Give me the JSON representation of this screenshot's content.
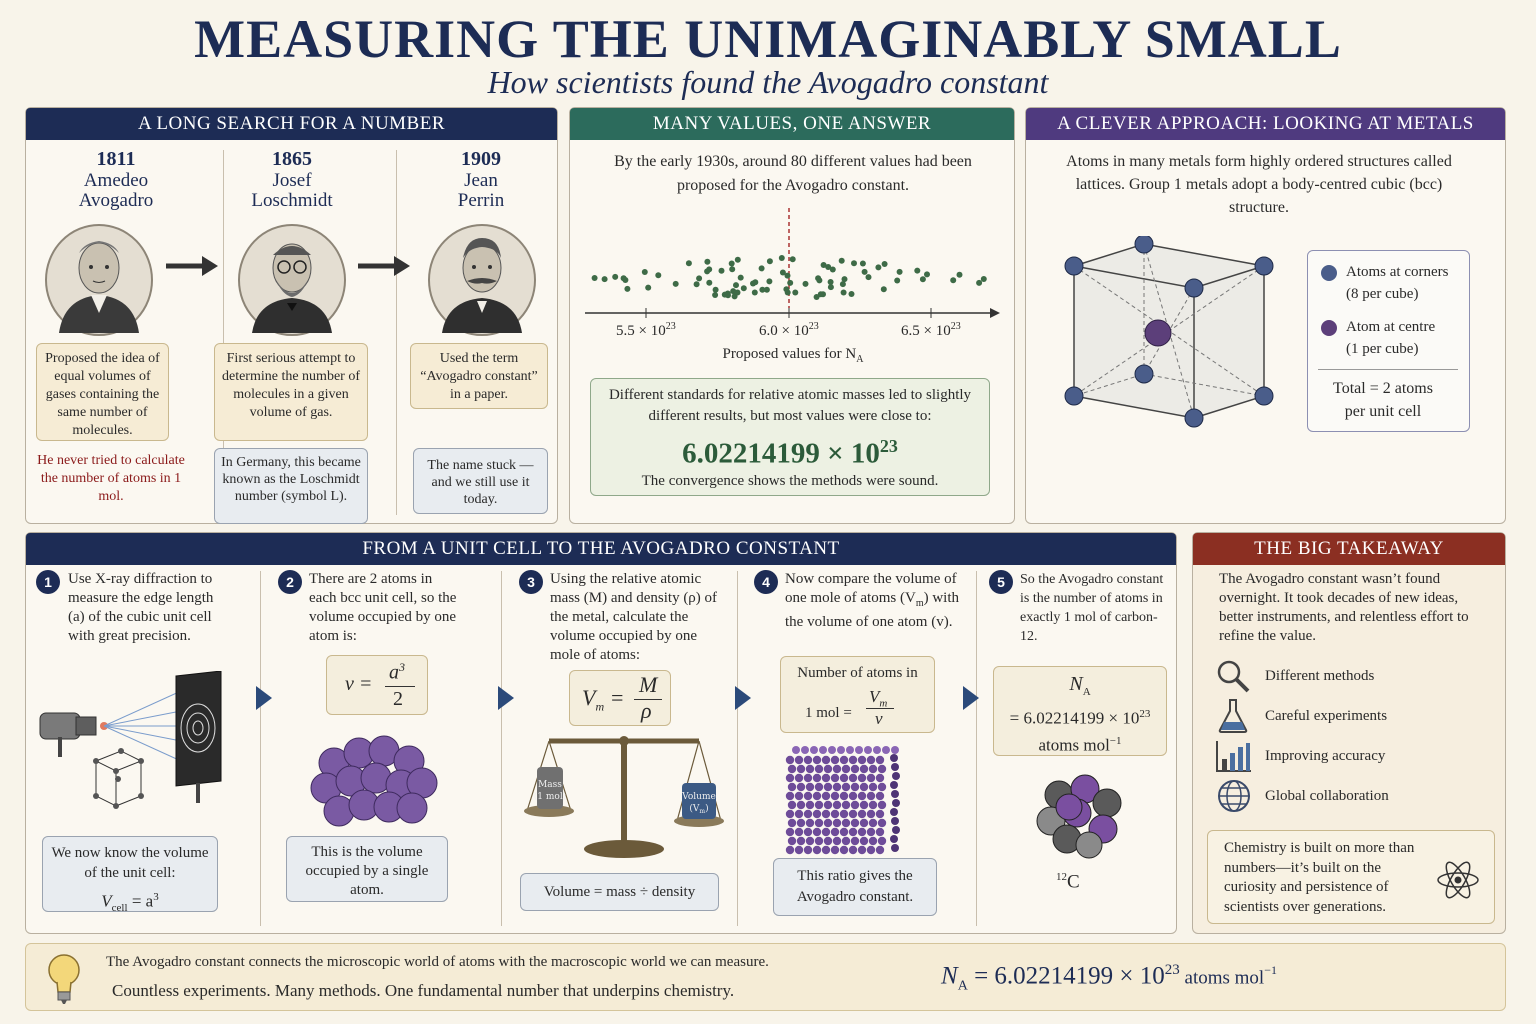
{
  "title": "MEASURING THE UNIMAGINABLY SMALL",
  "subtitle": "How scientists found the Avogadro constant",
  "colors": {
    "navy": "#1d2c55",
    "teal": "#2c6b5c",
    "purple": "#4f3a7f",
    "red": "#8b2f22",
    "accent_red": "#8b1a1a",
    "dot_green": "#3e6b47"
  },
  "search": {
    "heading": "A LONG SEARCH FOR A NUMBER",
    "people": [
      {
        "year": "1811",
        "first": "Amedeo",
        "last": "Avogadro",
        "note": "Proposed the idea of equal volumes of gases containing the same number of molecules.",
        "extra": "He never tried to calculate the number of atoms in 1 mol."
      },
      {
        "year": "1865",
        "first": "Josef",
        "last": "Loschmidt",
        "note": "First serious attempt to determine the number of molecules in a given volume of gas.",
        "extra": "In Germany, this became known as the Loschmidt number (symbol L)."
      },
      {
        "year": "1909",
        "first": "Jean",
        "last": "Perrin",
        "note": "Used the term “Avogadro constant” in a paper.",
        "extra": "The name stuck —and we still use it today."
      }
    ]
  },
  "values": {
    "heading": "MANY VALUES, ONE ANSWER",
    "intro": "By the early 1930s, around 80 different values had been proposed for the Avogadro constant.",
    "axis_label": "Proposed values for N",
    "axis_sub": "A",
    "ticks": [
      {
        "base": "5.5 × 10",
        "exp": "23"
      },
      {
        "base": "6.0 × 10",
        "exp": "23"
      },
      {
        "base": "6.5 × 10",
        "exp": "23"
      }
    ],
    "box_text": "Different standards for relative atomic masses led to slightly different results, but most values were close to:",
    "big_value": "6.02214199 × 10",
    "big_exp": "23",
    "box_footer": "The convergence shows the methods were sound."
  },
  "metals": {
    "heading": "A CLEVER APPROACH: LOOKING AT METALS",
    "intro": "Atoms in many metals form highly ordered structures called lattices. Group 1 metals adopt a body-centred cubic (bcc) structure.",
    "legend": [
      {
        "label": "Atoms at corners",
        "sub": "(8 per cube)",
        "color": "#4a5d8a"
      },
      {
        "label": "Atom at centre",
        "sub": "(1 per cube)",
        "color": "#5c3f7a"
      }
    ],
    "total": "Total = 2 atoms",
    "total2": "per unit cell"
  },
  "steps": {
    "heading": "FROM A UNIT CELL TO THE AVOGADRO CONSTANT",
    "items": [
      {
        "num": "1",
        "text": "Use X-ray diffraction to measure the edge length (a) of the cubic unit cell with great precision.",
        "box1": "We now know the volume of the unit cell:",
        "box2": "V",
        "box2sub": "cell",
        "box2rest": " = a",
        "box2exp": "3"
      },
      {
        "num": "2",
        "text": "There are 2 atoms in each bcc unit cell, so the volume occupied by one atom is:",
        "eq_lhs": "v =",
        "eq_num": "a",
        "eq_num_exp": "3",
        "eq_den": "2",
        "box": "This is the volume occupied by a single atom."
      },
      {
        "num": "3",
        "text": "Using the relative atomic mass (M) and density (ρ) of the metal, calculate the volume occupied by one mole of atoms:",
        "eq_lhs": "V",
        "eq_lhs_sub": "m",
        "eq_num": "M",
        "eq_den": "ρ",
        "mass_label": "Mass",
        "mass_sub": "(1 mol)",
        "vol_label": "Volume",
        "vol_sub": "(V",
        "vol_sub_m": "m",
        "box": "Volume = mass ÷ density"
      },
      {
        "num": "4",
        "text": "Now compare the volume of one mole of atoms (V",
        "text_sub": "m",
        "text_rest": ") with the volume of one atom (v).",
        "eq_top": "Number of atoms in",
        "eq_lhs": "1 mol =",
        "eq_num": "V",
        "eq_num_sub": "m",
        "eq_den": "v",
        "box": "This ratio gives the Avogadro constant."
      },
      {
        "num": "5",
        "text": "So the Avogadro constant is the number of atoms in exactly 1 mol of carbon-12.",
        "eq_top": "N",
        "eq_top_sub": "A",
        "eq_mid": "= 6.02214199 × 10",
        "eq_mid_exp": "23",
        "eq_bot": "atoms mol",
        "eq_bot_exp": "−1",
        "carbon": "C",
        "carbon_sup": "12"
      }
    ]
  },
  "takeaway": {
    "heading": "THE BIG TAKEAWAY",
    "intro": "The Avogadro constant wasn’t found overnight. It took decades of new ideas, better instruments, and relentless effort to refine the value.",
    "items": [
      {
        "icon": "magnifier-icon",
        "label": "Different methods"
      },
      {
        "icon": "flask-icon",
        "label": "Careful experiments"
      },
      {
        "icon": "bar-chart-icon",
        "label": "Improving accuracy"
      },
      {
        "icon": "globe-icon",
        "label": "Global collaboration"
      }
    ],
    "quote": "Chemistry is built on more than numbers—it’s built on the curiosity and persistence of scientists over generations."
  },
  "footer": {
    "line1": "The Avogadro constant connects the microscopic world of atoms with the macroscopic world we can measure.",
    "line2": "Countless experiments. Many methods. One fundamental number that underpins chemistry.",
    "eq_n": "N",
    "eq_sub": "A",
    "eq_val": " = 6.02214199 × 10",
    "eq_exp": "23",
    "eq_unit": " atoms mol",
    "eq_unit_exp": "−1"
  }
}
